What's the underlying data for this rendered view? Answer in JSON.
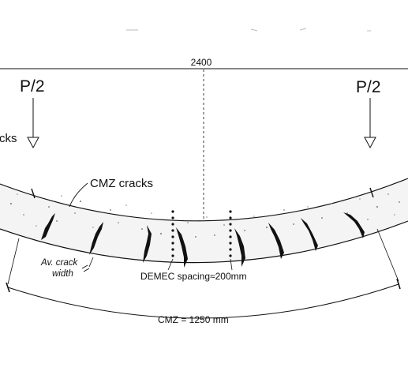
{
  "labels": {
    "span": "2400",
    "load_left": "P/2",
    "load_right": "P/2",
    "cracks_partial": "cks",
    "cmz_cracks": "CMZ cracks",
    "av_crack_line1": "Av. crack",
    "av_crack_line2": "width",
    "demec": "DEMEC spacing≈200mm",
    "cmz_length": "CMZ = 1250 mm"
  },
  "colors": {
    "ink": "#111111",
    "concrete_speckle": "#8a8a8a",
    "background": "#ffffff"
  }
}
